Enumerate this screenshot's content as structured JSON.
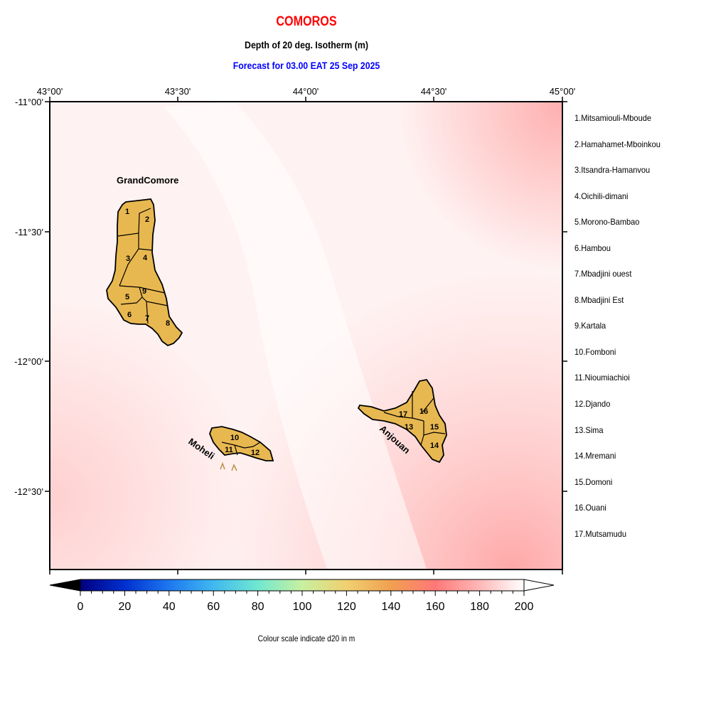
{
  "header": {
    "country": "COMOROS",
    "parameter": "Depth of 20 deg. Isotherm (m)",
    "forecast": "Forecast for  03.00 EAT 25 Sep 2025"
  },
  "map": {
    "lon_ticks": [
      "43°00'",
      "43°30'",
      "44°00'",
      "44°30'",
      "45°00'"
    ],
    "lat_ticks": [
      "-11°00'",
      "-11°30'",
      "-12°00'",
      "-12°30'"
    ],
    "island_labels": {
      "grande_comore": "GrandComore",
      "moheli": "Moheli",
      "anjouan": "Anjouan"
    },
    "region_numbers": [
      "1",
      "2",
      "3",
      "4",
      "5",
      "6",
      "7",
      "8",
      "9",
      "10",
      "11",
      "12",
      "13",
      "14",
      "15",
      "16",
      "17"
    ],
    "colors": {
      "land": "#e8b850",
      "ocean_light": "#fff4f4",
      "ocean_pink": "#ffb0b0"
    }
  },
  "regions": [
    "1.Mitsamiouli-Mboude",
    "2.Hamahamet-Mboinkou",
    "3.Itsandra-Hamanvou",
    "4.Oichili-dimani",
    "5.Morono-Bambao",
    "6.Hambou",
    "7.Mbadjini ouest",
    "8.Mbadjini Est",
    "9.Kartala",
    "10.Fomboni",
    "11.Nioumiachioi",
    "12.Djando",
    "13.Sima",
    "14.Mremani",
    "15.Domoni",
    "16.Ouani",
    "17.Mutsamudu"
  ],
  "colorbar": {
    "ticks": [
      "0",
      "20",
      "40",
      "60",
      "80",
      "100",
      "120",
      "140",
      "160",
      "180",
      "200"
    ],
    "caption": "Colour scale indicate d20 in m",
    "stops": [
      "#000080",
      "#0030d0",
      "#1e90ff",
      "#40c8f0",
      "#80f0c0",
      "#d8f0a0",
      "#f0c860",
      "#f08850",
      "#ff8080",
      "#ffc8c8",
      "#ffffff"
    ]
  }
}
